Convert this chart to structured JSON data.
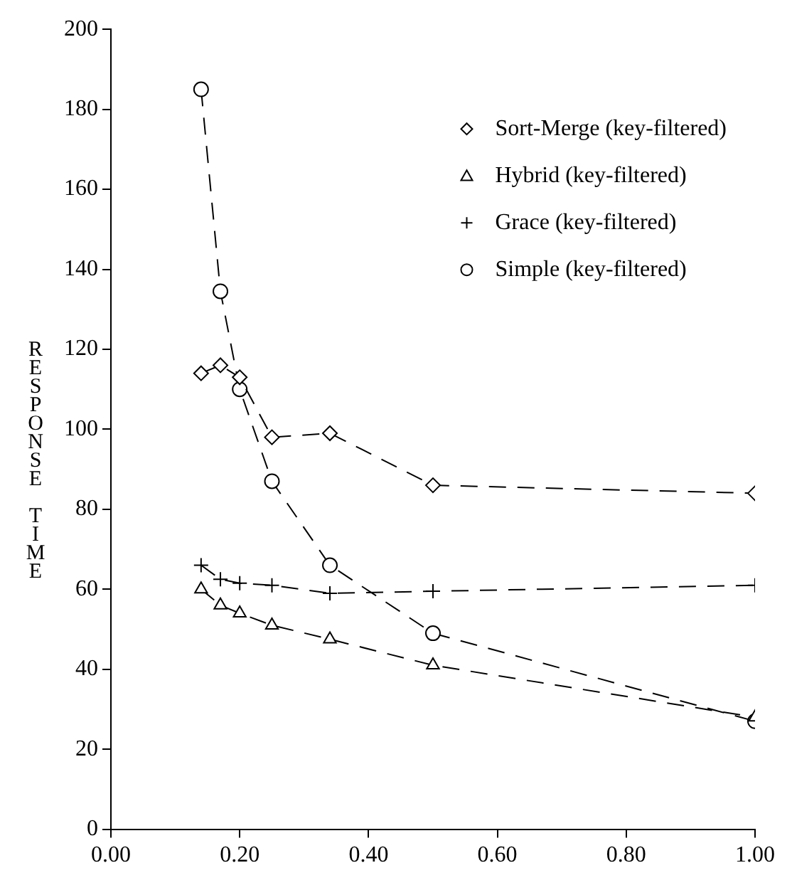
{
  "chart_data": {
    "type": "line",
    "ylabel": "RESPONSE TIME",
    "x": [
      0.14,
      0.17,
      0.2,
      0.25,
      0.34,
      0.5,
      1.0
    ],
    "xlim": [
      0,
      1
    ],
    "ylim": [
      0,
      200
    ],
    "xticks": [
      {
        "value": 0,
        "label": "0.00"
      },
      {
        "value": 0.2,
        "label": "0.20"
      },
      {
        "value": 0.4,
        "label": "0.40"
      },
      {
        "value": 0.6,
        "label": "0.60"
      },
      {
        "value": 0.8,
        "label": "0.80"
      },
      {
        "value": 1,
        "label": "1.00"
      }
    ],
    "yticks": [
      0,
      20,
      40,
      60,
      80,
      100,
      120,
      140,
      160,
      180,
      200
    ],
    "grid": false,
    "legend": "top right",
    "line_style": "dashed",
    "series": [
      {
        "name": "Sort-Merge (key-filtered)",
        "color": "#000000",
        "marker": "diamond",
        "values": [
          114,
          116,
          113,
          98,
          99,
          86,
          84
        ]
      },
      {
        "name": "Hybrid (key-filtered)",
        "color": "#000000",
        "marker": "triangle",
        "values": [
          60,
          56,
          54,
          51,
          47.5,
          41,
          28
        ]
      },
      {
        "name": "Grace (key-filtered)",
        "color": "#000000",
        "marker": "cross",
        "values": [
          66,
          62.5,
          61.5,
          61,
          59,
          59.5,
          61
        ]
      },
      {
        "name": "Simple (key-filtered)",
        "color": "#000000",
        "marker": "circle",
        "values": [
          185,
          134.5,
          110,
          87,
          66,
          49,
          27
        ]
      }
    ]
  }
}
